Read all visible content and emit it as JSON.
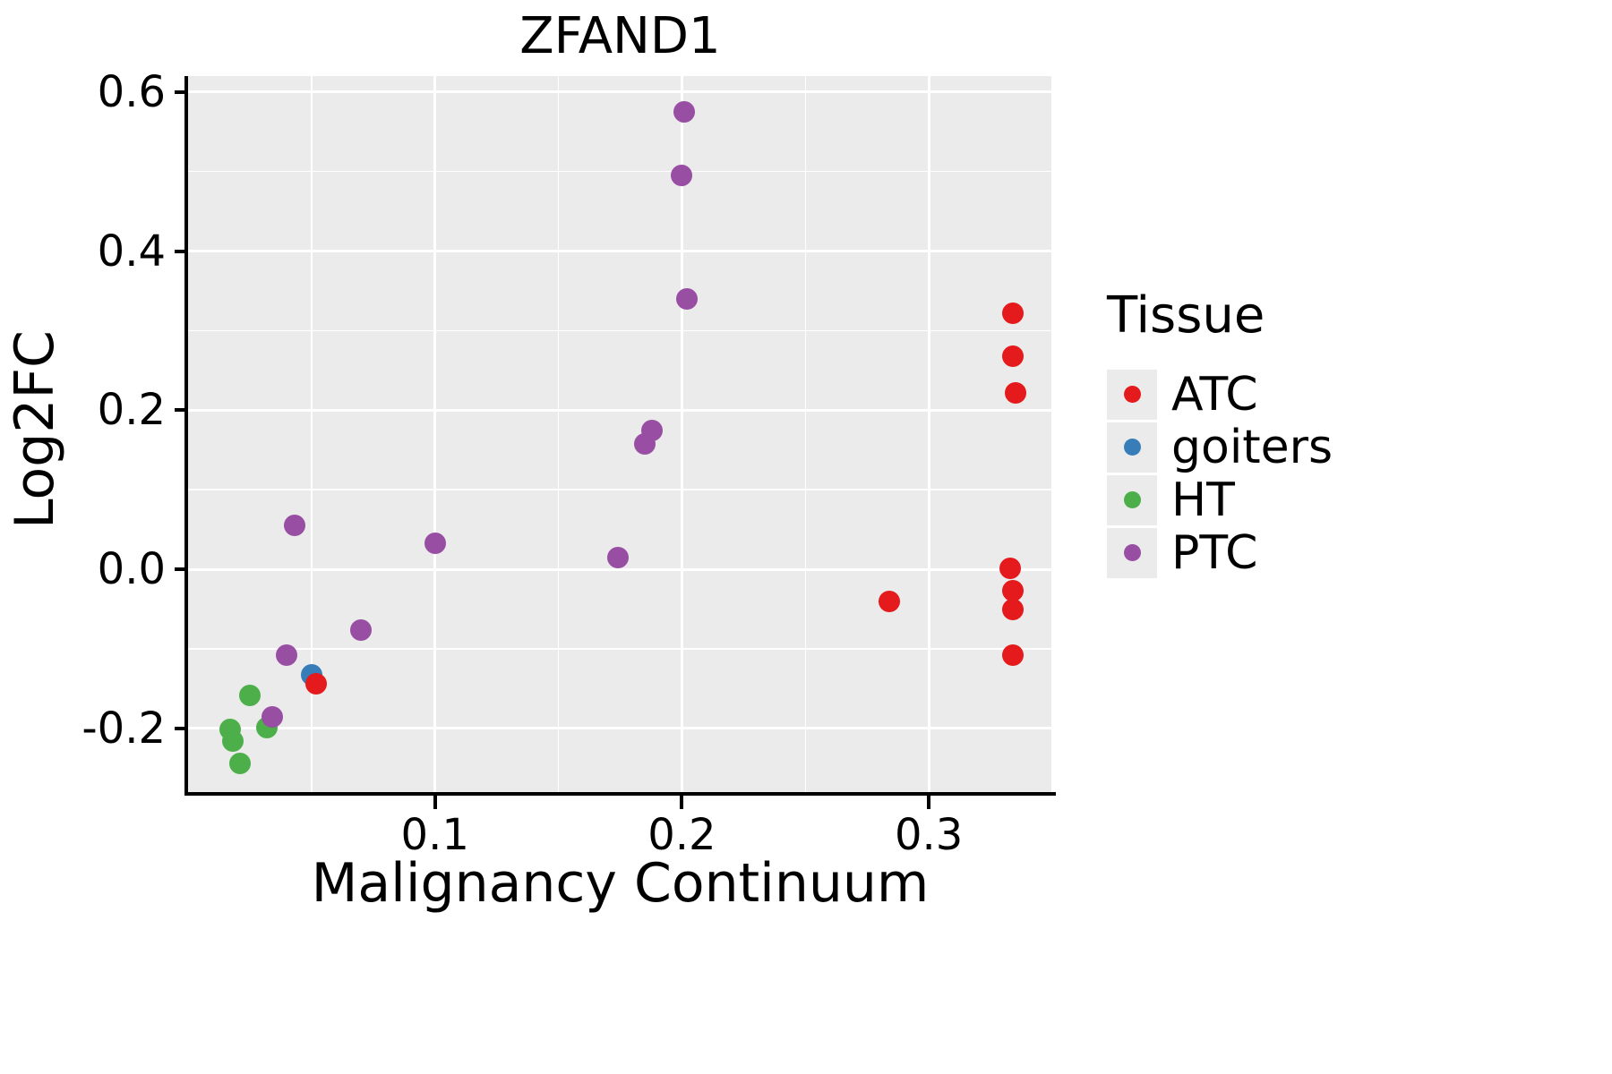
{
  "chart_data": {
    "type": "scatter",
    "title": "ZFAND1",
    "xlabel": "Malignancy Continuum",
    "ylabel": "Log2FC",
    "legend_title": "Tissue",
    "legend_position": "right",
    "grid": true,
    "xlim": [
      0,
      0.35
    ],
    "ylim": [
      -0.28,
      0.62
    ],
    "x_ticks": [
      {
        "value": 0.1,
        "label": "0.1"
      },
      {
        "value": 0.2,
        "label": "0.2"
      },
      {
        "value": 0.3,
        "label": "0.3"
      }
    ],
    "y_ticks": [
      {
        "value": -0.2,
        "label": "-0.2"
      },
      {
        "value": 0.0,
        "label": "0.0"
      },
      {
        "value": 0.2,
        "label": "0.2"
      },
      {
        "value": 0.4,
        "label": "0.4"
      },
      {
        "value": 0.6,
        "label": "0.6"
      }
    ],
    "x_minor": [
      0.05,
      0.15,
      0.25,
      0.35
    ],
    "y_minor": [
      -0.1,
      0.1,
      0.3,
      0.5
    ],
    "series": [
      {
        "name": "HT",
        "color": "#4daf4a",
        "points": [
          [
            0.017,
            -0.201
          ],
          [
            0.018,
            -0.216
          ],
          [
            0.021,
            -0.244
          ],
          [
            0.025,
            -0.158
          ],
          [
            0.032,
            -0.199
          ]
        ]
      },
      {
        "name": "goiters",
        "color": "#377eb8",
        "points": [
          [
            0.05,
            -0.133
          ]
        ]
      },
      {
        "name": "PTC",
        "color": "#984ea3",
        "points": [
          [
            0.034,
            -0.185
          ],
          [
            0.04,
            -0.108
          ],
          [
            0.043,
            0.055
          ],
          [
            0.07,
            -0.076
          ],
          [
            0.1,
            0.033
          ],
          [
            0.174,
            0.015
          ],
          [
            0.185,
            0.158
          ],
          [
            0.188,
            0.175
          ],
          [
            0.2,
            0.495
          ],
          [
            0.201,
            0.575
          ],
          [
            0.202,
            0.34
          ]
        ]
      },
      {
        "name": "ATC",
        "color": "#e41a1c",
        "points": [
          [
            0.052,
            -0.144
          ],
          [
            0.284,
            -0.04
          ],
          [
            0.333,
            0.001
          ],
          [
            0.334,
            -0.027
          ],
          [
            0.334,
            -0.108
          ],
          [
            0.334,
            0.322
          ],
          [
            0.334,
            0.268
          ],
          [
            0.335,
            0.222
          ],
          [
            0.334,
            -0.05
          ]
        ]
      }
    ],
    "legend_entries": [
      {
        "label": "ATC",
        "color": "#e41a1c"
      },
      {
        "label": "goiters",
        "color": "#377eb8"
      },
      {
        "label": "HT",
        "color": "#4daf4a"
      },
      {
        "label": "PTC",
        "color": "#984ea3"
      }
    ]
  },
  "style": {
    "panel_bg": "#ebebeb",
    "grid_color": "#ffffff",
    "axis_color": "#000000",
    "legend_key_bg": "#ebebeb",
    "text_color": "#000000"
  }
}
